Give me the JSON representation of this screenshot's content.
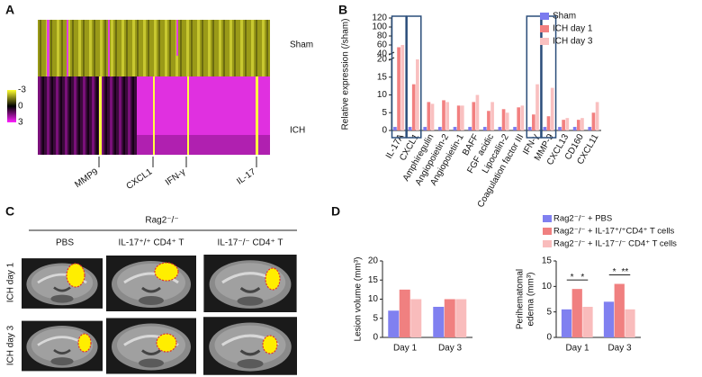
{
  "panel_labels": [
    "A",
    "B",
    "C",
    "D"
  ],
  "heatmap": {
    "row_groups": [
      "Sham",
      "ICH"
    ],
    "colorbar_ticks": [
      -3,
      0,
      3
    ],
    "genes": [
      "MMP9",
      "CXCL1",
      "IFN-γ",
      "IL-17"
    ]
  },
  "images": {
    "group_label": "Rag2⁻/⁻",
    "columns": [
      "PBS",
      "IL-17⁺/⁺ CD4⁺ T",
      "IL-17⁻/⁻ CD4⁺ T"
    ],
    "rows": [
      "ICH day 1",
      "ICH day 3"
    ]
  },
  "chart_data": [
    {
      "type": "bar",
      "ylabel": [
        "Relative expression (/sham)"
      ],
      "categories": [
        "IL-17A",
        "CXCL1",
        "Amphiregulin",
        "Angiopoietin-2",
        "Angiopoietin-1",
        "BAFF",
        "FGF acidic",
        "Lipocalin-2",
        "Coagulation factor III",
        "IFN-γ",
        "MMP-9",
        "CXCL13",
        "CD160",
        "CXCL11"
      ],
      "series": [
        {
          "name": "Sham",
          "color": "#7b7bef",
          "values": [
            1,
            1,
            1,
            1,
            1,
            1,
            1,
            1,
            1,
            1,
            1,
            1,
            1,
            1
          ]
        },
        {
          "name": "ICH day 1",
          "color": "#f28080",
          "values": [
            55,
            13,
            8,
            8.5,
            7,
            8,
            5.5,
            6,
            6.5,
            4.5,
            4,
            3,
            3,
            5
          ]
        },
        {
          "name": "ICH day 3",
          "color": "#f9c0c0",
          "values": [
            60,
            20,
            7.5,
            8,
            7,
            10,
            8,
            5,
            7,
            13,
            12,
            3.5,
            3.5,
            8
          ]
        }
      ],
      "ylim": [
        0,
        120
      ],
      "y_break": [
        20,
        40
      ],
      "yticks": [
        0,
        5,
        10,
        15,
        20,
        40,
        60,
        80,
        100,
        120
      ],
      "highlight_categories": [
        0,
        1,
        9,
        10
      ]
    },
    {
      "type": "bar",
      "ylabel": [
        "Lesion volume (mm³)"
      ],
      "categories": [
        "Day 1",
        "Day 3"
      ],
      "series": [
        {
          "color": "#8080f0",
          "values": [
            7,
            8
          ]
        },
        {
          "color": "#f08080",
          "values": [
            12.5,
            10
          ]
        },
        {
          "color": "#f9bcbc",
          "values": [
            10,
            10
          ]
        }
      ],
      "ylim": [
        0,
        20
      ],
      "yticks": [
        0,
        5,
        10,
        15,
        20
      ]
    },
    {
      "type": "bar",
      "ylabel": [
        "Perihematomal",
        "edema (mm³)"
      ],
      "categories": [
        "Day 1",
        "Day 3"
      ],
      "series": [
        {
          "name": "Rag2⁻/⁻ + PBS",
          "color": "#8080f0",
          "values": [
            5.5,
            7
          ]
        },
        {
          "name": "Rag2⁻/⁻ + IL-17⁺/⁺CD4⁺ T cells",
          "color": "#f08080",
          "values": [
            9.5,
            10.5
          ]
        },
        {
          "name": "Rag2⁻/⁻ + IL-17⁻/⁻ CD4⁺ T cells",
          "color": "#f9bcbc",
          "values": [
            6,
            5.5
          ]
        }
      ],
      "ylim": [
        0,
        15
      ],
      "yticks": [
        0,
        5,
        10,
        15
      ],
      "annotations": [
        "*",
        "*",
        "*",
        "**"
      ]
    }
  ]
}
